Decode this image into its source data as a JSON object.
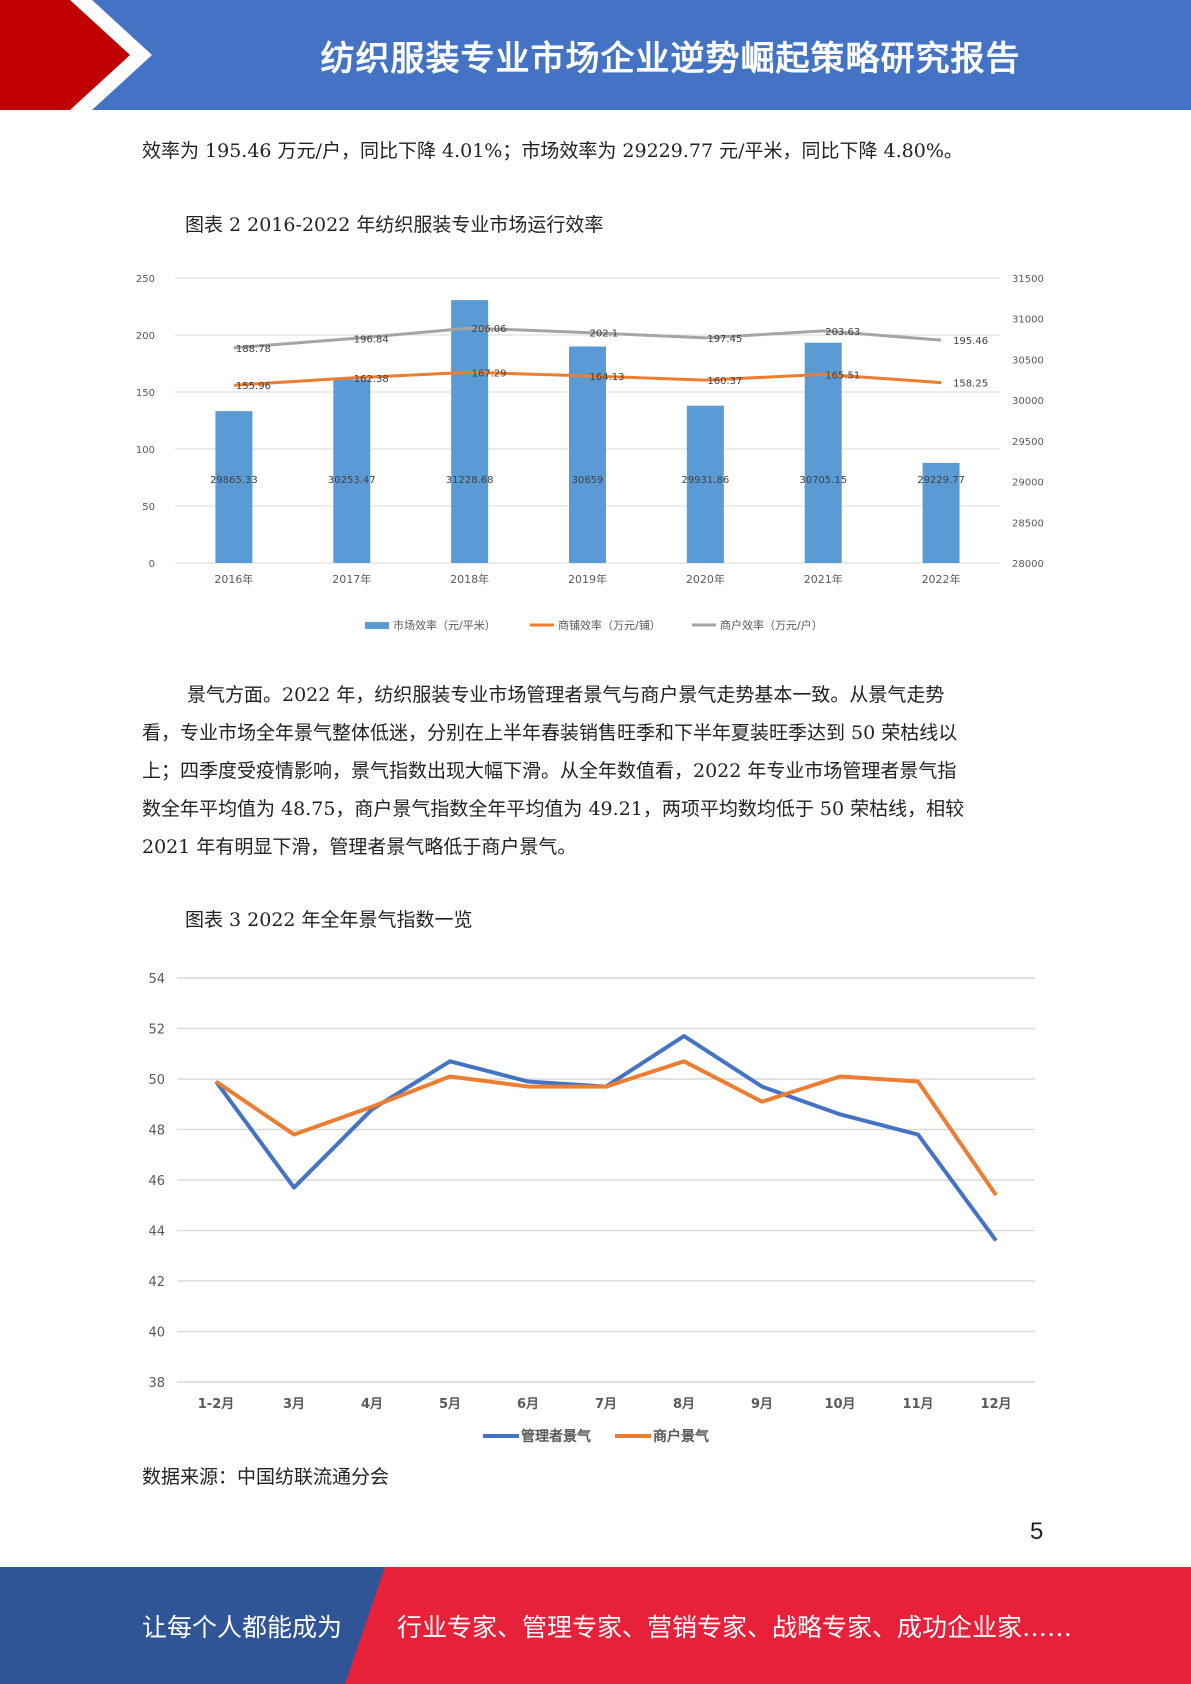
{
  "header": {
    "title": "纺织服装专业市场企业逆势崛起策略研究报告"
  },
  "paragraphs": {
    "intro": "效率为 195.46 万元/户，同比下降 4.01%；市场效率为 29229.77 元/平米，同比下降 4.80%。",
    "climate": [
      "景气方面。2022 年，纺织服装专业市场管理者景气与商户景气走势基本一致。从景气走势",
      "看，专业市场全年景气整体低迷，分别在上半年春装销售旺季和下半年夏装旺季达到 50 荣枯线以",
      "上；四季度受疫情影响，景气指数出现大幅下滑。从全年数值看，2022 年专业市场管理者景气指",
      "数全年平均值为 48.75，商户景气指数全年平均值为 49.21，两项平均数均低于 50 荣枯线，相较",
      "2021 年有明显下滑，管理者景气略低于商户景气。"
    ]
  },
  "captions": {
    "chart2": "图表 2 2016-2022 年纺织服装专业市场运行效率",
    "chart3": "图表 3 2022 年全年景气指数一览"
  },
  "source": "数据来源：中国纺联流通分会",
  "page_number": "5",
  "footer": {
    "left": "让每个人都能成为",
    "right": "行业专家、管理专家、营销专家、战略专家、成功企业家……"
  },
  "colors": {
    "header_blue": "#4472c4",
    "header_red": "#c00000",
    "bar_blue": "#5b9bd5",
    "line_orange": "#ed7d31",
    "line_gray": "#a5a5a5",
    "line_blue": "#4472c4",
    "footer_blue": "#2f5597",
    "footer_red": "#e8203a"
  },
  "chart_data": [
    {
      "type": "bar",
      "categories": [
        "2016年",
        "2017年",
        "2018年",
        "2019年",
        "2020年",
        "2021年",
        "2022年"
      ],
      "series": [
        {
          "name": "市场效率（元/平米）",
          "kind": "bar",
          "axis": "right",
          "values": [
            29865.33,
            30253.47,
            31228.68,
            30659,
            29931.86,
            30705.15,
            29229.77
          ],
          "labels": [
            "29865.33",
            "30253.47",
            "31228.68",
            "30659",
            "29931.86",
            "30705.15",
            "29229.77"
          ]
        },
        {
          "name": "商铺效率（万元/铺）",
          "kind": "line",
          "axis": "left",
          "values": [
            155.96,
            162.38,
            167.29,
            164.13,
            160.37,
            165.51,
            158.25
          ],
          "labels": [
            "155.96",
            "162.38",
            "167.29",
            "164.13",
            "160.37",
            "165.51",
            "158.25"
          ]
        },
        {
          "name": "商户效率（万元/户）",
          "kind": "line",
          "axis": "left",
          "values": [
            188.78,
            196.84,
            206.06,
            202.1,
            197.45,
            203.63,
            195.46
          ],
          "labels": [
            "188.78",
            "196.84",
            "206.06",
            "202.1",
            "197.45",
            "203.63",
            "195.46"
          ]
        }
      ],
      "ylim_left": [
        0,
        250
      ],
      "yticks_left": [
        0,
        50,
        100,
        150,
        200,
        250
      ],
      "ylim_right": [
        28000,
        31500
      ],
      "yticks_right": [
        28000,
        28500,
        29000,
        29500,
        30000,
        30500,
        31000,
        31500
      ],
      "grid": true,
      "legend": "bottom"
    },
    {
      "type": "line",
      "categories": [
        "1-2月",
        "3月",
        "4月",
        "5月",
        "6月",
        "7月",
        "8月",
        "9月",
        "10月",
        "11月",
        "12月"
      ],
      "series": [
        {
          "name": "管理者景气",
          "values": [
            49.9,
            45.7,
            48.8,
            50.7,
            49.9,
            49.7,
            51.7,
            49.7,
            48.6,
            47.8,
            43.6
          ]
        },
        {
          "name": "商户景气",
          "values": [
            49.9,
            47.8,
            48.9,
            50.1,
            49.7,
            49.7,
            50.7,
            49.1,
            50.1,
            49.9,
            45.4
          ]
        }
      ],
      "ylim": [
        38,
        54
      ],
      "yticks": [
        38,
        40,
        42,
        44,
        46,
        48,
        50,
        52,
        54
      ],
      "grid": true,
      "legend": "bottom"
    }
  ]
}
